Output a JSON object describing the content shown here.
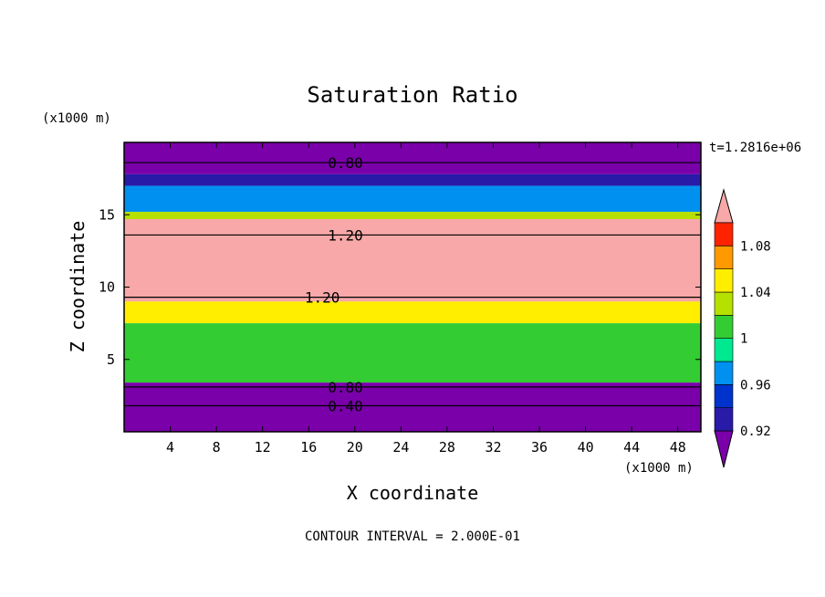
{
  "chart_data": {
    "type": "heatmap",
    "title": "Saturation Ratio",
    "xlabel": "X coordinate",
    "ylabel": "Z coordinate",
    "x_unit_label": "(x1000 m)",
    "y_unit_label": "(x1000 m)",
    "time_label": "t=1.2816e+06",
    "footer": "CONTOUR INTERVAL = 2.000E-01",
    "xlim": [
      0,
      50
    ],
    "ylim": [
      0,
      20
    ],
    "x_ticks": [
      "4",
      "8",
      "12",
      "16",
      "20",
      "24",
      "28",
      "32",
      "36",
      "40",
      "44",
      "48"
    ],
    "y_ticks": [
      "5",
      "10",
      "15"
    ],
    "x_tick_values": [
      4,
      8,
      12,
      16,
      20,
      24,
      28,
      32,
      36,
      40,
      44,
      48
    ],
    "y_tick_values": [
      5,
      10,
      15
    ],
    "colorbar": {
      "levels": [
        0.92,
        0.94,
        0.96,
        0.98,
        1.0,
        1.02,
        1.04,
        1.06,
        1.08,
        1.1
      ],
      "labels": [
        "0.92",
        "0.96",
        "1",
        "1.04",
        "1.08"
      ],
      "label_values": [
        0.92,
        0.96,
        1.0,
        1.04,
        1.08
      ],
      "colors": [
        "#7a00aa",
        "#2a1aa8",
        "#0033cc",
        "#0090f0",
        "#00e890",
        "#33cc33",
        "#b6e000",
        "#ffee00",
        "#ff9900",
        "#ff2200",
        "#f8a8a8"
      ]
    },
    "contour_labels": [
      {
        "text": "0.80",
        "x": 17.5,
        "z": 18.6
      },
      {
        "text": "1.20",
        "x": 17.5,
        "z": 13.6
      },
      {
        "text": "1.20",
        "x": 15.5,
        "z": 9.3
      },
      {
        "text": "0.80",
        "x": 17.5,
        "z": 3.1
      },
      {
        "text": "0.40",
        "x": 17.5,
        "z": 1.8
      }
    ],
    "layers": [
      {
        "z": [
          17.8,
          20.0
        ],
        "value": 0.8
      },
      {
        "z": [
          17.0,
          17.8
        ],
        "value": 0.93
      },
      {
        "z": [
          15.2,
          17.0
        ],
        "value": 0.96
      },
      {
        "z": [
          14.7,
          15.2
        ],
        "value": 1.02
      },
      {
        "z": [
          9.0,
          14.7
        ],
        "value": 1.2
      },
      {
        "z": [
          7.5,
          9.0
        ],
        "value": 1.04
      },
      {
        "z": [
          3.4,
          7.5
        ],
        "value": 1.0
      },
      {
        "z": [
          0.0,
          3.4
        ],
        "value": 0.6
      }
    ]
  }
}
